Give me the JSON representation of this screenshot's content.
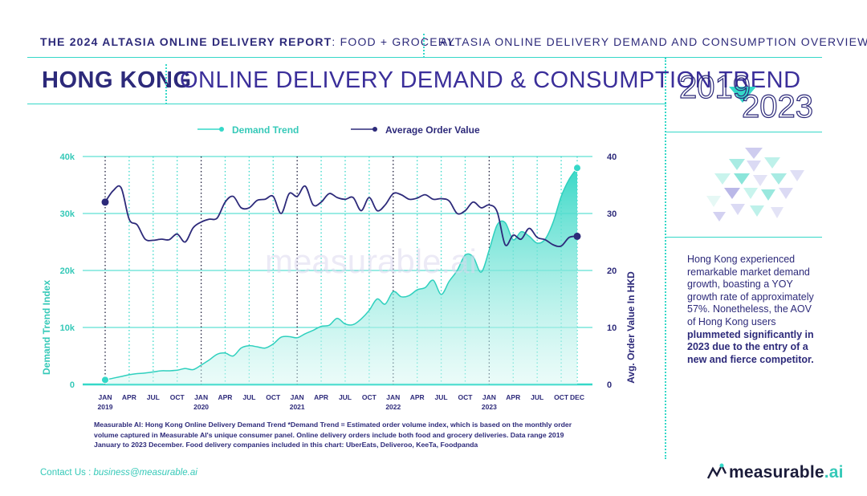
{
  "header": {
    "report_title_bold": "THE 2024 ALTASIA ONLINE DELIVERY REPORT",
    "report_title_thin": ": FOOD + GROCERY",
    "section_title": "ALTASIA ONLINE DELIVERY DEMAND AND CONSUMPTION OVERVIEW",
    "region": "HONG KONG",
    "chart_heading": "ONLINE DELIVERY DEMAND & CONSUMPTION TREND",
    "year_start": "2019",
    "year_end": "2023"
  },
  "summary": {
    "part1": "Hong Kong experienced remarkable market demand growth, boasting a YOY growth rate of approximately 57%. Nonetheless, the AOV of Hong Kong users ",
    "part2": "plummeted significantly in 2023 due to the entry of a new and fierce competitor."
  },
  "footnote": "Measurable AI: Hong Kong Online Delivery Demand Trend *Demand Trend = Estimated order volume index, which is based on the monthly order volume captured in Measurable AI's unique consumer panel. Online delivery orders include both food and grocery deliveries. Data range 2019 January to 2023 December. Food delivery companies included in this chart: UberEats, Deliveroo, KeeTa, Foodpanda",
  "contact": {
    "label": "Contact Us : ",
    "email": "business@measurable.ai"
  },
  "brand": {
    "name": "measurable",
    "suffix": ".ai"
  },
  "watermark": "measurable.ai",
  "colors": {
    "teal": "#35d8c8",
    "navy": "#2d2a7a",
    "purple": "#3b2f9a"
  },
  "chart_data": {
    "type": "line",
    "title": "Online Delivery Demand & Consumption Trend",
    "ylabel_left": "Demand Trend Index",
    "ylabel_right": "Avg. Order Value In HKD",
    "ylim_left": [
      0,
      40000
    ],
    "ylim_right": [
      0,
      40
    ],
    "left_ticks": [
      "0",
      "10k",
      "20k",
      "30k",
      "40k"
    ],
    "right_ticks": [
      "0",
      "10",
      "20",
      "30",
      "40"
    ],
    "x_tick_labels": [
      "JAN",
      "APR",
      "JUL",
      "OCT",
      "JAN",
      "APR",
      "JUL",
      "OCT",
      "JAN",
      "APR",
      "JUL",
      "OCT",
      "JAN",
      "APR",
      "JUL",
      "OCT",
      "JAN",
      "APR",
      "JUL",
      "OCT",
      "DEC"
    ],
    "x_tick_months": [
      0,
      3,
      6,
      9,
      12,
      15,
      18,
      21,
      24,
      27,
      30,
      33,
      36,
      39,
      42,
      45,
      48,
      51,
      54,
      57,
      59
    ],
    "year_labels": [
      {
        "month": 0,
        "label": "2019"
      },
      {
        "month": 12,
        "label": "2020"
      },
      {
        "month": 24,
        "label": "2021"
      },
      {
        "month": 36,
        "label": "2022"
      },
      {
        "month": 48,
        "label": "2023"
      }
    ],
    "legend_position": "top-center",
    "series": [
      {
        "name": "Demand Trend",
        "axis": "left",
        "style": "area",
        "values": [
          800,
          1100,
          1400,
          1700,
          1900,
          2000,
          2200,
          2400,
          2400,
          2500,
          2800,
          2600,
          3400,
          4300,
          5300,
          5500,
          5000,
          6400,
          6800,
          6600,
          6400,
          7100,
          8300,
          8400,
          8200,
          8900,
          9500,
          10200,
          10400,
          11600,
          10600,
          10500,
          11500,
          13000,
          15000,
          14100,
          16300,
          15400,
          15600,
          16600,
          17000,
          18300,
          15800,
          18100,
          20000,
          22700,
          22400,
          19700,
          23600,
          28000,
          28400,
          25400,
          26800,
          26000,
          24800,
          25500,
          28500,
          33000,
          36000,
          38000
        ]
      },
      {
        "name": "Average Order Value",
        "axis": "right",
        "style": "line",
        "values": [
          32,
          34,
          34.5,
          29,
          28,
          25.5,
          25.3,
          25.5,
          25.4,
          26.4,
          25,
          27.5,
          28.5,
          29,
          29.2,
          32,
          33,
          31,
          31,
          32.3,
          32.5,
          33,
          30,
          33.5,
          33,
          34.8,
          31.5,
          32,
          33.5,
          32.8,
          32.5,
          32.8,
          30.5,
          32.8,
          30.5,
          31.5,
          33.5,
          33.3,
          32.5,
          32.7,
          33.3,
          32.5,
          32.6,
          32.2,
          30,
          30.5,
          32,
          31,
          31.5,
          30.3,
          24.5,
          26.2,
          25.5,
          27.4,
          25.8,
          25.4,
          24.5,
          24.3,
          25.8,
          26
        ]
      }
    ]
  }
}
